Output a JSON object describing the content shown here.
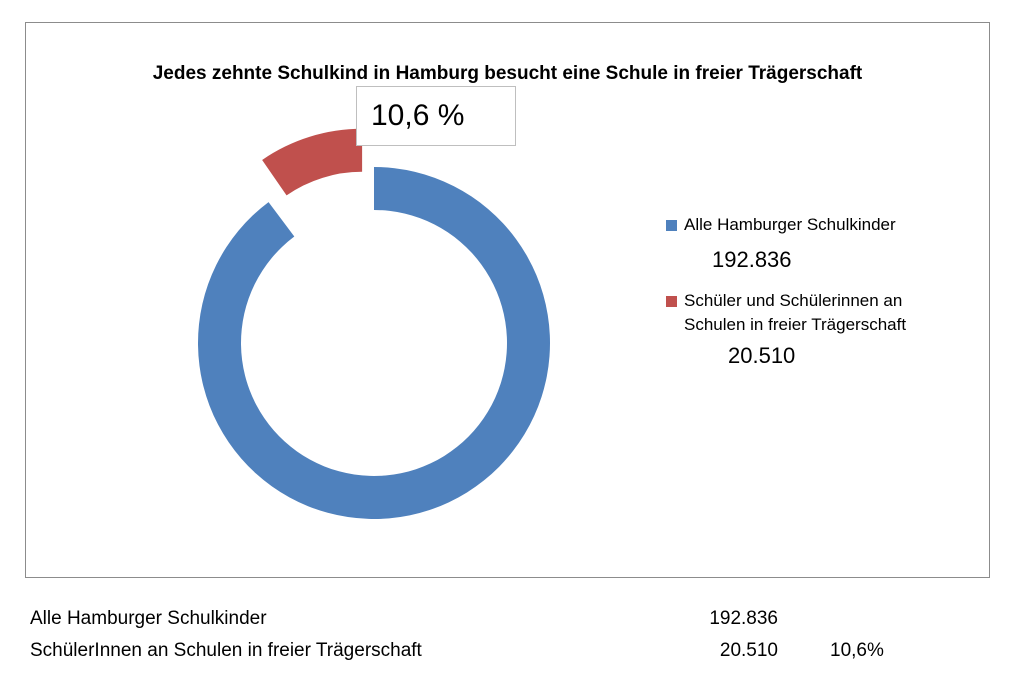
{
  "chart_data": {
    "type": "pie",
    "title": "Jedes zehnte Schulkind in Hamburg besucht eine Schule in freier Trägerschaft",
    "callout": "10,6 %",
    "series": [
      {
        "name": "Alle Hamburger Schulkinder",
        "value": 192836,
        "value_label": "192.836",
        "color": "#4f81bd"
      },
      {
        "name": "Schüler und Schülerinnen an Schulen in freier Trägerschaft",
        "value": 20510,
        "value_label": "20.510",
        "color": "#c0504d"
      }
    ],
    "legend_position": "right"
  },
  "summary": {
    "rows": [
      {
        "label": "Alle Hamburger Schulkinder",
        "value": "192.836",
        "percent": ""
      },
      {
        "label": "SchülerInnen an Schulen in freier Trägerschaft",
        "value": "20.510",
        "percent": "10,6%"
      }
    ]
  }
}
